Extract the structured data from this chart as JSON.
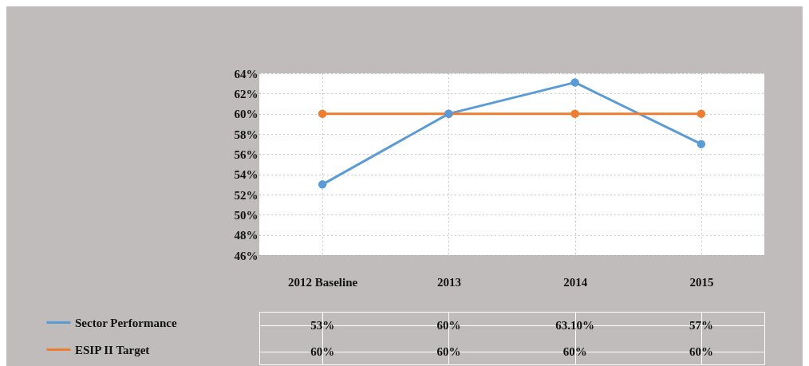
{
  "chart_data": {
    "type": "line",
    "categories": [
      "2012 Baseline",
      "2013",
      "2014",
      "2015"
    ],
    "series": [
      {
        "name": "Sector Performance",
        "color": "#5b9bd5",
        "values": [
          53,
          60,
          63.1,
          57
        ],
        "value_labels": [
          "53%",
          "60%",
          "63.10%",
          "57%"
        ]
      },
      {
        "name": "ESIP II Target",
        "color": "#ed7d31",
        "values": [
          60,
          60,
          60,
          60
        ],
        "value_labels": [
          "60%",
          "60%",
          "60%",
          "60%"
        ]
      }
    ],
    "ylim": [
      46,
      64
    ],
    "yticks": [
      {
        "value": 46,
        "label": "46%"
      },
      {
        "value": 48,
        "label": "48%"
      },
      {
        "value": 50,
        "label": "50%"
      },
      {
        "value": 52,
        "label": "52%"
      },
      {
        "value": 54,
        "label": "54%"
      },
      {
        "value": 56,
        "label": "56%"
      },
      {
        "value": 58,
        "label": "58%"
      },
      {
        "value": 60,
        "label": "60%"
      },
      {
        "value": 62,
        "label": "62%"
      },
      {
        "value": 64,
        "label": "64%"
      }
    ],
    "grid": true,
    "marker": "circle",
    "legend": "bottom left"
  }
}
